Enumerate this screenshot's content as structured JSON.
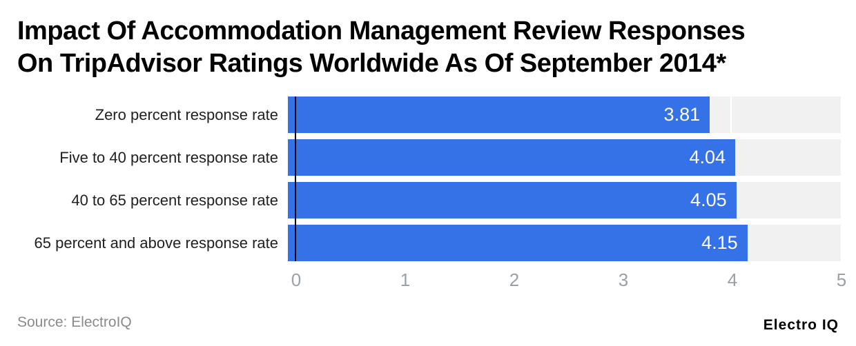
{
  "title": {
    "line1": "Impact Of Accommodation Management Review Responses",
    "line2": "On TripAdvisor Ratings Worldwide As Of September 2014*"
  },
  "chart_data": {
    "type": "bar",
    "orientation": "horizontal",
    "title": "Impact Of Accommodation Management Review Responses On TripAdvisor Ratings Worldwide As Of September 2014*",
    "categories": [
      "Zero percent response rate",
      "Five to 40 percent response rate",
      "40 to 65 percent response rate",
      "65 percent and above response rate"
    ],
    "values": [
      3.81,
      4.04,
      4.05,
      4.15
    ],
    "value_labels": [
      "3.81",
      "4.04",
      "4.05",
      "4.15"
    ],
    "xlabel": "",
    "ylabel": "",
    "xlim": [
      0,
      5
    ],
    "x_ticks": [
      0,
      1,
      2,
      3,
      4,
      5
    ],
    "grid": true,
    "legend": false,
    "bar_color": "#3572e7",
    "track_color": "#f1f1f2",
    "axis_line_color": "#000000",
    "tick_label_color": "#9aa0a6"
  },
  "footer": {
    "source": "Source: ElectroIQ",
    "brand": "Electro IQ"
  }
}
